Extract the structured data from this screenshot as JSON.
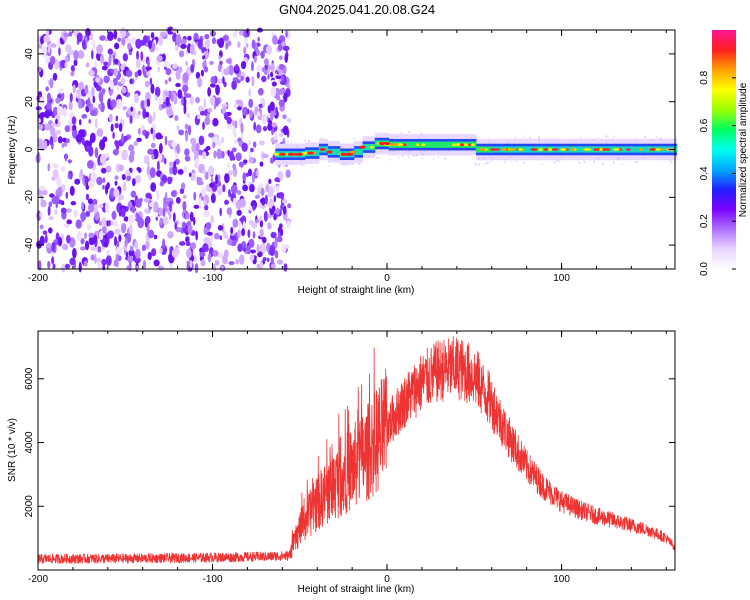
{
  "title": "GN04.2025.041.20.08.G24",
  "chart_data": [
    {
      "type": "heatmap",
      "xlabel": "Height of straight line (km)",
      "ylabel": "Frequency (Hz)",
      "xlim": [
        -200,
        165
      ],
      "ylim": [
        -50,
        50
      ],
      "xticks": [
        -200,
        -100,
        0,
        100
      ],
      "yticks": [
        -40,
        -20,
        0,
        20,
        40
      ],
      "noise_region_x": [
        -200,
        -60
      ],
      "trace": {
        "x_start": -64,
        "x_end": 165,
        "segments": [
          {
            "x": [
              -64,
              -48
            ],
            "freq": -2
          },
          {
            "x": [
              -48,
              -40
            ],
            "freq": -1.5
          },
          {
            "x": [
              -40,
              -35
            ],
            "freq": 0
          },
          {
            "x": [
              -35,
              -28
            ],
            "freq": -1
          },
          {
            "x": [
              -28,
              -20
            ],
            "freq": -2
          },
          {
            "x": [
              -20,
              -15
            ],
            "freq": -1
          },
          {
            "x": [
              -15,
              -8
            ],
            "freq": 1
          },
          {
            "x": [
              -8,
              0
            ],
            "freq": 2.5
          },
          {
            "x": [
              0,
              50
            ],
            "freq": 2
          },
          {
            "x": [
              50,
              165
            ],
            "freq": 0
          }
        ]
      },
      "colorbar": {
        "label": "Normalized spectral amplitude",
        "ticks": [
          0.0,
          0.2,
          0.4,
          0.6,
          0.8
        ],
        "range": [
          0,
          1
        ],
        "colors": [
          "#ffffff",
          "#e8d4ff",
          "#b070ff",
          "#7a00ff",
          "#2020ff",
          "#00aaff",
          "#00ffee",
          "#00ff60",
          "#9cff00",
          "#ffff00",
          "#ffa000",
          "#ff2020",
          "#ff1493"
        ]
      }
    },
    {
      "type": "line",
      "xlabel": "Height of straight line (km)",
      "ylabel": "SNR (10 * v/v)",
      "xlim": [
        -200,
        165
      ],
      "ylim": [
        0,
        7500
      ],
      "xticks": [
        -200,
        -100,
        0,
        100
      ],
      "yticks": [
        2000,
        4000,
        6000
      ],
      "color": "#ee3333",
      "envelope": {
        "x": [
          -200,
          -150,
          -100,
          -70,
          -56,
          -50,
          -40,
          -30,
          -20,
          -10,
          0,
          10,
          20,
          30,
          40,
          50,
          60,
          70,
          80,
          90,
          100,
          110,
          120,
          130,
          140,
          150,
          160,
          165
        ],
        "y": [
          350,
          360,
          390,
          420,
          450,
          1300,
          2100,
          2700,
          3200,
          3750,
          4500,
          5300,
          5900,
          6250,
          6350,
          6100,
          5250,
          4150,
          3250,
          2600,
          2150,
          1900,
          1700,
          1550,
          1400,
          1250,
          1000,
          700
        ]
      }
    }
  ]
}
